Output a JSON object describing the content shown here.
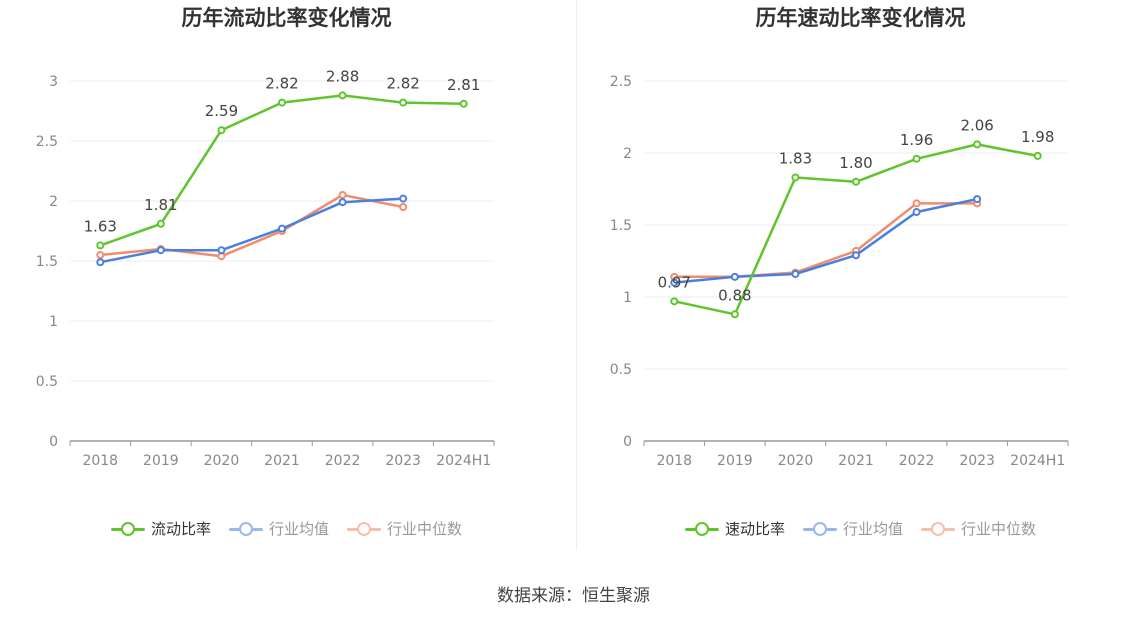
{
  "colors": {
    "main": "#5ec52c",
    "avg": "#4a7fe0",
    "median": "#f08c6a",
    "grid": "#e8ecf4",
    "axis": "#999999"
  },
  "source": "数据来源：恒生聚源",
  "chart_data": [
    {
      "type": "line",
      "title": "历年流动比率变化情况",
      "categories": [
        "2018",
        "2019",
        "2020",
        "2021",
        "2022",
        "2023",
        "2024H1"
      ],
      "y_ticks": [
        "0",
        "0.5",
        "1",
        "1.5",
        "2",
        "2.5",
        "3"
      ],
      "ylim": [
        0,
        3
      ],
      "grid": true,
      "legend_position": "bottom-center",
      "series": [
        {
          "name": "流动比率",
          "color": "#5ec52c",
          "values": [
            1.63,
            1.81,
            2.59,
            2.82,
            2.88,
            2.82,
            2.81
          ],
          "labels": [
            "1.63",
            "1.81",
            "2.59",
            "2.82",
            "2.88",
            "2.82",
            "2.81"
          ]
        },
        {
          "name": "行业均值",
          "color": "#4a7fe0",
          "values": [
            1.49,
            1.59,
            1.59,
            1.77,
            1.99,
            2.02,
            null
          ]
        },
        {
          "name": "行业中位数",
          "color": "#f08c6a",
          "values": [
            1.55,
            1.6,
            1.54,
            1.75,
            2.05,
            1.95,
            null
          ]
        }
      ]
    },
    {
      "type": "line",
      "title": "历年速动比率变化情况",
      "categories": [
        "2018",
        "2019",
        "2020",
        "2021",
        "2022",
        "2023",
        "2024H1"
      ],
      "y_ticks": [
        "0",
        "0.5",
        "1",
        "1.5",
        "2",
        "2.5"
      ],
      "ylim": [
        0,
        2.5
      ],
      "grid": true,
      "legend_position": "bottom-center",
      "series": [
        {
          "name": "速动比率",
          "color": "#5ec52c",
          "values": [
            0.97,
            0.88,
            1.83,
            1.8,
            1.96,
            2.06,
            1.98
          ],
          "labels": [
            "0.97",
            "0.88",
            "1.83",
            "1.80",
            "1.96",
            "2.06",
            "1.98"
          ]
        },
        {
          "name": "行业均值",
          "color": "#4a7fe0",
          "values": [
            1.1,
            1.14,
            1.16,
            1.29,
            1.59,
            1.68,
            null
          ]
        },
        {
          "name": "行业中位数",
          "color": "#f08c6a",
          "values": [
            1.14,
            1.14,
            1.17,
            1.32,
            1.65,
            1.65,
            null
          ]
        }
      ]
    }
  ]
}
